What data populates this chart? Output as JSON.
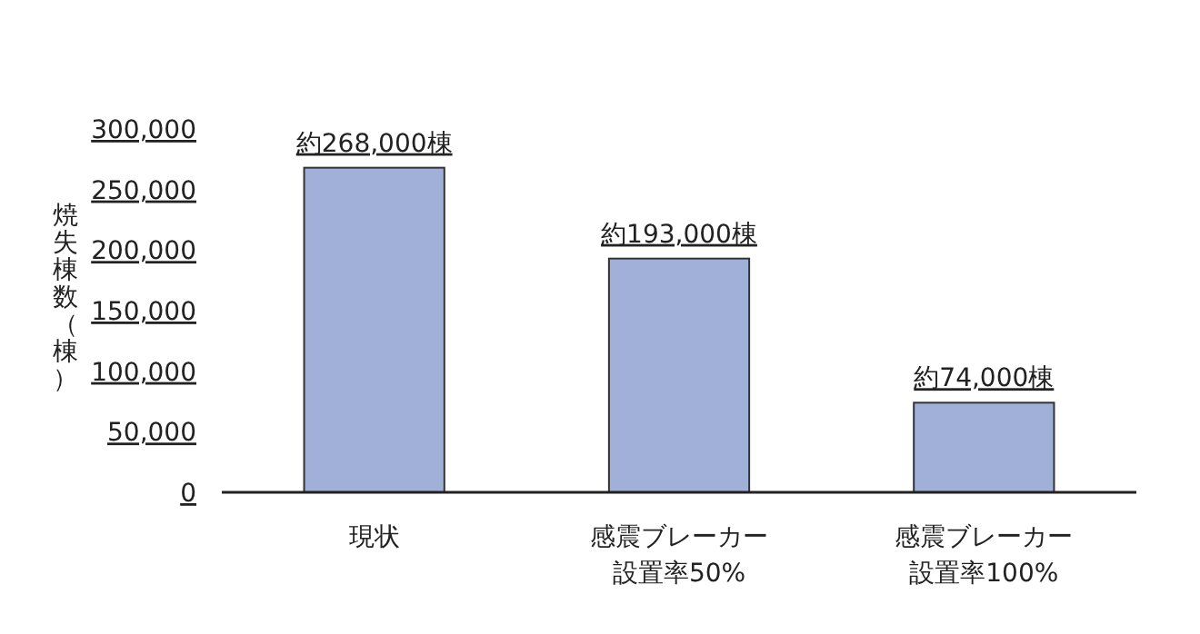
{
  "chart_data": {
    "type": "bar",
    "ylabel": "焼失棟数（棟）",
    "categories": [
      "現状",
      "感震ブレーカー設置率50%",
      "感震ブレーカー設置率100%"
    ],
    "values": [
      268000,
      193000,
      74000
    ],
    "value_labels": [
      "約268,000棟",
      "約193,000棟",
      "約74,000棟"
    ],
    "color": "#a1b0d8",
    "ylim": [
      0,
      300000
    ],
    "yticks": [
      {
        "value": 0,
        "label": "0"
      },
      {
        "value": 50000,
        "label": "50,000"
      },
      {
        "value": 100000,
        "label": "100,000"
      },
      {
        "value": 150000,
        "label": "150,000"
      },
      {
        "value": 200000,
        "label": "200,000"
      },
      {
        "value": 250000,
        "label": "250,000"
      },
      {
        "value": 300000,
        "label": "300,000"
      }
    ],
    "grid": false
  }
}
